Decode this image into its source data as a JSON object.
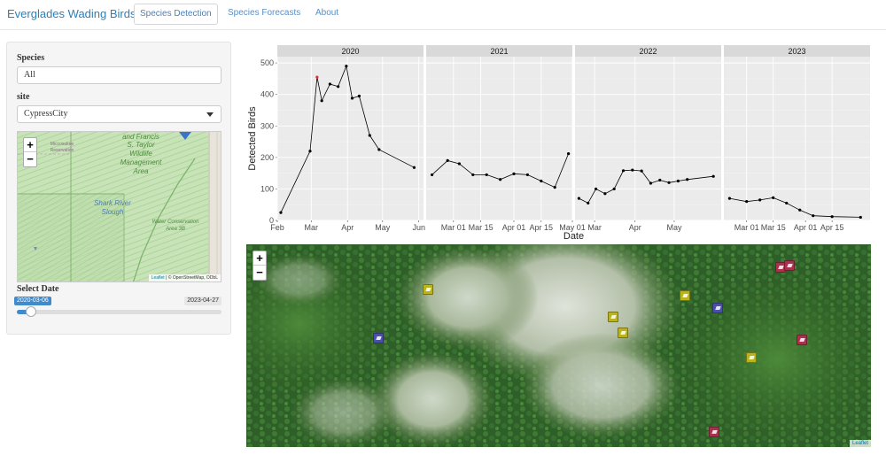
{
  "navbar": {
    "brand": "Everglades Wading Birds",
    "tabs": [
      {
        "label": "Species Detection",
        "active": true
      },
      {
        "label": "Species Forecasts",
        "active": false
      },
      {
        "label": "About",
        "active": false
      }
    ]
  },
  "sidebar": {
    "species_label": "Species",
    "species_value": "All",
    "site_label": "site",
    "site_value": "CypressCity",
    "map": {
      "zoom_in": "+",
      "zoom_out": "−",
      "labels": [
        "and Francis",
        "S. Taylor",
        "Wildlife",
        "Management",
        "Area",
        "Shark River",
        "Slough",
        "Water Conservation",
        "Area 3B",
        "Miccosukee",
        "Reservation"
      ],
      "attribution_leaflet": "Leaflet",
      "attribution_rest": " | © OpenStreetMap, ODbL"
    },
    "date_label": "Select Date",
    "slider": {
      "min_label": "2020-03-06",
      "max_label": "2023-04-27",
      "position": 0.07
    }
  },
  "chart_data": {
    "type": "line",
    "xlabel": "Date",
    "ylabel": "Detected Birds",
    "ylim": [
      0,
      520
    ],
    "yticks": [
      0,
      100,
      200,
      300,
      400,
      500
    ],
    "background": "#ebebeb",
    "strip_color": "#d9d9d9",
    "highlight_color": "#e0303a",
    "facets": [
      {
        "title": "2020",
        "xlim": [
          "2020-02-01",
          "2020-06-05"
        ],
        "xticks": [
          {
            "date": "2020-02-01",
            "label": "Feb"
          },
          {
            "date": "2020-03-01",
            "label": "Mar"
          },
          {
            "date": "2020-04-01",
            "label": "Apr"
          },
          {
            "date": "2020-05-01",
            "label": "May"
          },
          {
            "date": "2020-06-01",
            "label": "Jun"
          }
        ],
        "points": [
          {
            "x": "2020-02-04",
            "y": 25
          },
          {
            "x": "2020-02-29",
            "y": 220
          },
          {
            "x": "2020-03-06",
            "y": 455,
            "highlight": true
          },
          {
            "x": "2020-03-10",
            "y": 380
          },
          {
            "x": "2020-03-17",
            "y": 433
          },
          {
            "x": "2020-03-24",
            "y": 425
          },
          {
            "x": "2020-03-31",
            "y": 490
          },
          {
            "x": "2020-04-05",
            "y": 388
          },
          {
            "x": "2020-04-11",
            "y": 395
          },
          {
            "x": "2020-04-20",
            "y": 270
          },
          {
            "x": "2020-04-28",
            "y": 225
          },
          {
            "x": "2020-05-28",
            "y": 168
          }
        ]
      },
      {
        "title": "2021",
        "xlim": [
          "2021-02-15",
          "2021-05-01"
        ],
        "xticks": [
          {
            "date": "2021-03-01",
            "label": "Mar 01"
          },
          {
            "date": "2021-03-15",
            "label": "Mar 15"
          },
          {
            "date": "2021-04-01",
            "label": "Apr 01"
          },
          {
            "date": "2021-04-15",
            "label": "Apr 15"
          },
          {
            "date": "2021-05-01",
            "label": "May 01"
          }
        ],
        "points": [
          {
            "x": "2021-02-18",
            "y": 145
          },
          {
            "x": "2021-02-26",
            "y": 190
          },
          {
            "x": "2021-03-04",
            "y": 180
          },
          {
            "x": "2021-03-11",
            "y": 145
          },
          {
            "x": "2021-03-18",
            "y": 145
          },
          {
            "x": "2021-03-25",
            "y": 130
          },
          {
            "x": "2021-04-01",
            "y": 148
          },
          {
            "x": "2021-04-08",
            "y": 145
          },
          {
            "x": "2021-04-15",
            "y": 125
          },
          {
            "x": "2021-04-22",
            "y": 105
          },
          {
            "x": "2021-04-29",
            "y": 212
          }
        ]
      },
      {
        "title": "2022",
        "xlim": [
          "2022-02-14",
          "2022-06-06"
        ],
        "xticks": [
          {
            "date": "2022-03-01",
            "label": "Mar"
          },
          {
            "date": "2022-04-01",
            "label": "Apr"
          },
          {
            "date": "2022-05-01",
            "label": "May"
          }
        ],
        "points": [
          {
            "x": "2022-02-17",
            "y": 70
          },
          {
            "x": "2022-02-24",
            "y": 55
          },
          {
            "x": "2022-03-02",
            "y": 100
          },
          {
            "x": "2022-03-09",
            "y": 85
          },
          {
            "x": "2022-03-16",
            "y": 100
          },
          {
            "x": "2022-03-23",
            "y": 158
          },
          {
            "x": "2022-03-30",
            "y": 160
          },
          {
            "x": "2022-04-06",
            "y": 157
          },
          {
            "x": "2022-04-13",
            "y": 118
          },
          {
            "x": "2022-04-20",
            "y": 128
          },
          {
            "x": "2022-04-27",
            "y": 120
          },
          {
            "x": "2022-05-04",
            "y": 125
          },
          {
            "x": "2022-05-11",
            "y": 130
          },
          {
            "x": "2022-05-31",
            "y": 140
          }
        ]
      },
      {
        "title": "2023",
        "xlim": [
          "2023-02-17",
          "2023-05-05"
        ],
        "xticks": [
          {
            "date": "2023-03-01",
            "label": "Mar 01"
          },
          {
            "date": "2023-03-15",
            "label": "Mar 15"
          },
          {
            "date": "2023-04-01",
            "label": "Apr 01"
          },
          {
            "date": "2023-04-15",
            "label": "Apr 15"
          }
        ],
        "points": [
          {
            "x": "2023-02-20",
            "y": 70
          },
          {
            "x": "2023-03-01",
            "y": 60
          },
          {
            "x": "2023-03-08",
            "y": 65
          },
          {
            "x": "2023-03-15",
            "y": 72
          },
          {
            "x": "2023-03-22",
            "y": 55
          },
          {
            "x": "2023-03-29",
            "y": 33
          },
          {
            "x": "2023-04-05",
            "y": 15
          },
          {
            "x": "2023-04-15",
            "y": 12
          },
          {
            "x": "2023-04-30",
            "y": 10
          }
        ]
      }
    ]
  },
  "drone_map": {
    "zoom_in": "+",
    "zoom_out": "−",
    "attribution": "Leaflet",
    "detections": [
      {
        "species": "great-egret",
        "color": "#b9b31c"
      },
      {
        "species": "great-egret",
        "color": "#b9b31c"
      },
      {
        "species": "great-egret",
        "color": "#b9b31c"
      },
      {
        "species": "great-egret",
        "color": "#b9b31c"
      },
      {
        "species": "great-egret",
        "color": "#b9b31c"
      },
      {
        "species": "white-ibis",
        "color": "#4a4fa8"
      },
      {
        "species": "white-ibis",
        "color": "#4a4fa8"
      },
      {
        "species": "roseate-spoonbill",
        "color": "#a8324d"
      },
      {
        "species": "roseate-spoonbill",
        "color": "#a8324d"
      },
      {
        "species": "roseate-spoonbill",
        "color": "#a8324d"
      },
      {
        "species": "roseate-spoonbill",
        "color": "#a8324d"
      }
    ]
  }
}
